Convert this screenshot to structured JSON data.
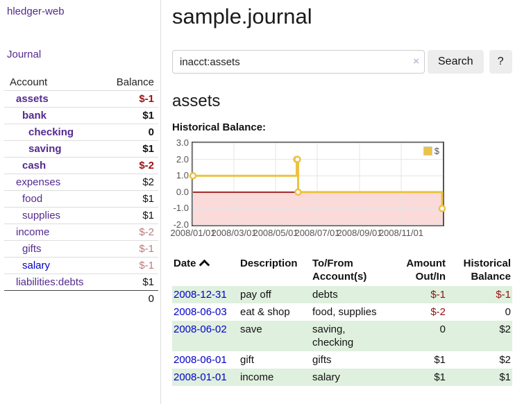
{
  "app": {
    "brand": "hledger-web",
    "nav": {
      "journal": "Journal"
    }
  },
  "colors": {
    "link_purple": "#532a8e",
    "link_blue": "#0000cc",
    "negative_strong": "#9d1111",
    "negative_muted": "#bc7b7b",
    "register_negative": "#8f1111",
    "row_green": "#dff0de",
    "chart_line": "#edc240"
  },
  "sidebar": {
    "header": {
      "account": "Account",
      "balance": "Balance"
    },
    "accounts": [
      {
        "name": "assets",
        "balance": "$-1",
        "level": 1,
        "bold": true,
        "visited": true
      },
      {
        "name": "bank",
        "balance": "$1",
        "level": 2,
        "bold": true,
        "visited": true
      },
      {
        "name": "checking",
        "balance": "0",
        "level": 3,
        "bold": true,
        "visited": true
      },
      {
        "name": "saving",
        "balance": "$1",
        "level": 3,
        "bold": true,
        "visited": true
      },
      {
        "name": "cash",
        "balance": "$-2",
        "level": 2,
        "bold": true,
        "visited": true
      },
      {
        "name": "expenses",
        "balance": "$2",
        "level": 1,
        "bold": false,
        "visited": true
      },
      {
        "name": "food",
        "balance": "$1",
        "level": 2,
        "bold": false,
        "visited": true
      },
      {
        "name": "supplies",
        "balance": "$1",
        "level": 2,
        "bold": false,
        "visited": true
      },
      {
        "name": "income",
        "balance": "$-2",
        "level": 1,
        "bold": false,
        "visited": true
      },
      {
        "name": "gifts",
        "balance": "$-1",
        "level": 2,
        "bold": false,
        "visited": true
      },
      {
        "name": "salary",
        "balance": "$-1",
        "level": 2,
        "bold": false,
        "visited": false
      },
      {
        "name": "liabilities:debts",
        "balance": "$1",
        "level": 1,
        "bold": false,
        "visited": true
      }
    ],
    "total": "0"
  },
  "main": {
    "title": "sample.journal",
    "search": {
      "value": "inacct:assets",
      "clear_icon": "×",
      "button": "Search",
      "help_button": "?"
    },
    "account_heading": "assets",
    "chart_label": "Historical Balance:"
  },
  "chart_data": {
    "type": "line",
    "title": "Historical Balance",
    "series": [
      {
        "name": "$",
        "color": "#edc240",
        "step": true,
        "points": [
          {
            "x": "2008-01-01",
            "y": 1
          },
          {
            "x": "2008-06-01",
            "y": 2
          },
          {
            "x": "2008-06-02",
            "y": 2
          },
          {
            "x": "2008-06-03",
            "y": 0
          },
          {
            "x": "2008-12-31",
            "y": -1
          }
        ]
      }
    ],
    "xlim": [
      "2008-01-01",
      "2009-01-01"
    ],
    "ylim": [
      -2,
      3
    ],
    "x_ticks": [
      "2008/01/01",
      "2008/03/01",
      "2008/05/01",
      "2008/07/01",
      "2008/09/01",
      "2008/11/01"
    ],
    "y_ticks": [
      "3.0",
      "2.0",
      "1.0",
      "0.0",
      "-1.0",
      "-2.0"
    ],
    "legend": {
      "label": "$",
      "position": "top-right"
    },
    "grid": true,
    "zero_line_color": "#8b0000",
    "below_zero_fill": "#fbdada",
    "gridline_color": "#e4e4e4"
  },
  "register": {
    "headers": {
      "date": "Date",
      "sort_icon": "chevron-up",
      "description": "Description",
      "accounts_line1": "To/From",
      "accounts_line2": "Account(s)",
      "amount_line1": "Amount",
      "amount_line2": "Out/In",
      "balance_line1": "Historical",
      "balance_line2": "Balance"
    },
    "rows": [
      {
        "date": "2008-12-31",
        "description": "pay off",
        "accounts": "debts",
        "amount": "$-1",
        "balance": "$-1"
      },
      {
        "date": "2008-06-03",
        "description": "eat & shop",
        "accounts": "food, supplies",
        "amount": "$-2",
        "balance": "0"
      },
      {
        "date": "2008-06-02",
        "description": "save",
        "accounts": "saving, checking",
        "amount": "0",
        "balance": "$2"
      },
      {
        "date": "2008-06-01",
        "description": "gift",
        "accounts": "gifts",
        "amount": "$1",
        "balance": "$2"
      },
      {
        "date": "2008-01-01",
        "description": "income",
        "accounts": "salary",
        "amount": "$1",
        "balance": "$1"
      }
    ]
  }
}
